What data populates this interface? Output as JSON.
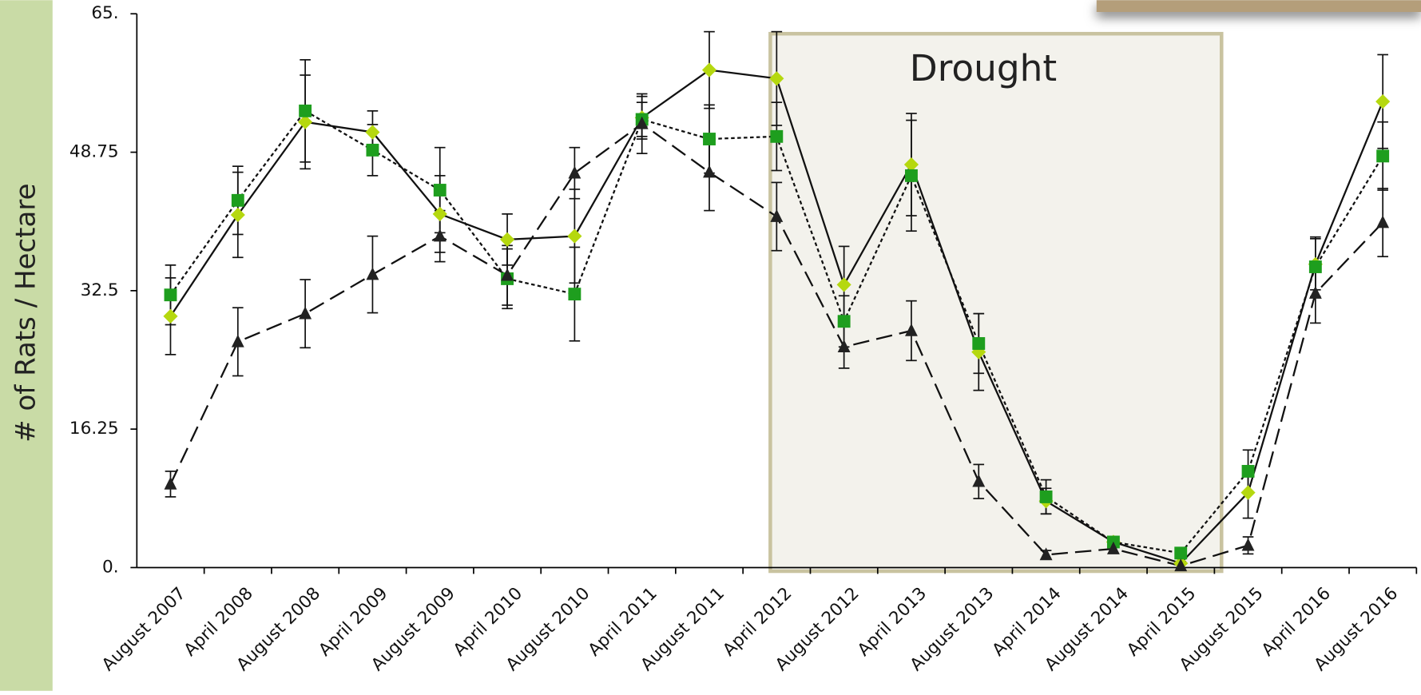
{
  "chart_data": {
    "type": "line",
    "ylabel": "# of Rats / Hectare",
    "annotation": "Drought",
    "categories": [
      "August 2007",
      "April 2008",
      "August 2008",
      "April 2009",
      "August 2009",
      "April 2010",
      "August 2010",
      "April 2011",
      "August 2011",
      "April 2012",
      "August 2012",
      "April 2013",
      "August 2013",
      "April 2014",
      "August 2014",
      "April 2015",
      "August 2015",
      "April 2016",
      "August 2016"
    ],
    "series": [
      {
        "color": "#b5d80f",
        "marker": "diamond",
        "dash": "solid",
        "values": [
          29.5,
          41.4,
          52.3,
          51.1,
          41.5,
          38.5,
          38.9,
          52.8,
          58.4,
          57.4,
          33.2,
          47.3,
          25.3,
          7.8,
          3.0,
          0.5,
          8.8,
          35.6,
          54.7
        ],
        "errors": [
          4.5,
          5.0,
          5.5,
          2.5,
          4.5,
          3.0,
          5.5,
          2.5,
          4.5,
          5.5,
          4.5,
          6.0,
          4.5,
          1.5,
          0.5,
          0.8,
          3.0,
          3.0,
          5.5
        ]
      },
      {
        "color": "#1e9e1e",
        "marker": "square",
        "dash": "dotted",
        "values": [
          32.0,
          43.1,
          53.6,
          49.0,
          44.3,
          33.9,
          32.1,
          52.6,
          50.3,
          50.6,
          28.9,
          46.0,
          26.3,
          8.3,
          3.0,
          1.7,
          11.3,
          35.3,
          48.3
        ],
        "errors": [
          3.5,
          4.0,
          6.0,
          3.0,
          5.0,
          3.5,
          5.5,
          2.0,
          4.0,
          4.0,
          3.0,
          6.5,
          3.5,
          2.0,
          0.5,
          0.5,
          2.5,
          3.5,
          4.0
        ]
      },
      {
        "color": "#222222",
        "marker": "triangle",
        "dash": "dashed",
        "values": [
          9.8,
          26.5,
          29.8,
          34.4,
          38.9,
          34.3,
          46.3,
          52.1,
          46.4,
          41.2,
          25.9,
          27.8,
          10.1,
          1.5,
          2.2,
          0.2,
          2.6,
          32.2,
          40.5
        ],
        "errors": [
          1.5,
          4.0,
          4.0,
          4.5,
          3.0,
          3.5,
          3.0,
          3.5,
          4.5,
          4.0,
          2.5,
          3.5,
          2.0,
          0.5,
          0.5,
          0.5,
          1.0,
          3.5,
          4.0
        ]
      }
    ],
    "ylim": [
      0,
      65
    ],
    "yticks": [
      {
        "value": 0,
        "label": "0."
      },
      16.25,
      32.5,
      48.75,
      {
        "value": 65,
        "label": "65."
      }
    ]
  }
}
